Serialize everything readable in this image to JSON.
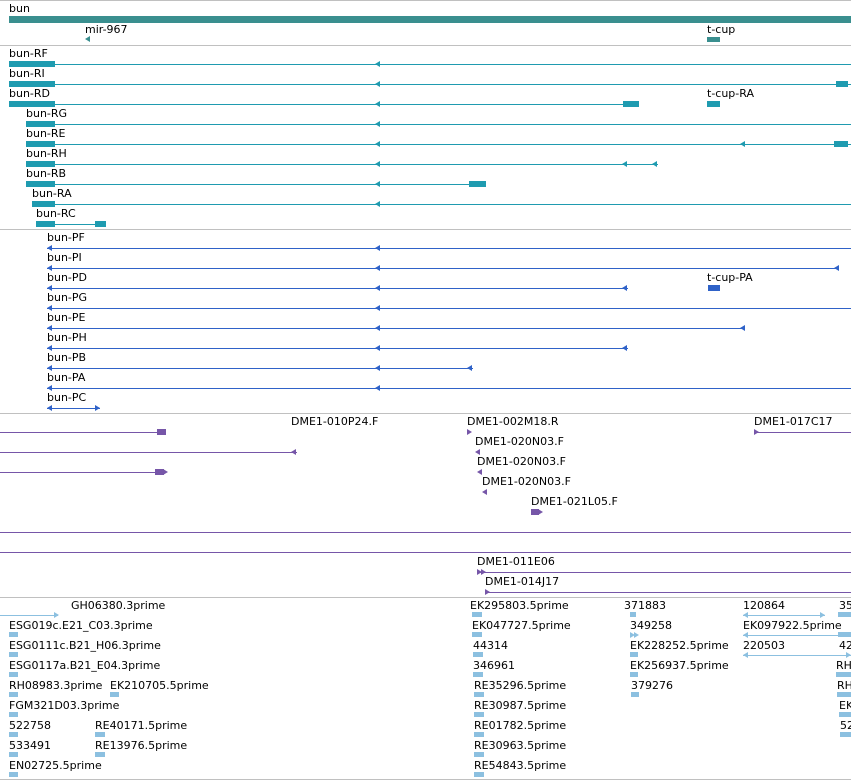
{
  "colors": {
    "gene": "#3a8f8f",
    "transcript": "#1f9bb0",
    "protein": "#2f62c8",
    "clone": "#7656a8",
    "est": "#8cc0e0",
    "separator": "#c0c0c0"
  },
  "gene_track": {
    "genes": [
      {
        "label": "bun"
      },
      {
        "label": "mir-967"
      },
      {
        "label": "t-cup"
      }
    ]
  },
  "transcripts": [
    {
      "label": "bun-RF"
    },
    {
      "label": "bun-RI"
    },
    {
      "label": "bun-RD"
    },
    {
      "label": "t-cup-RA"
    },
    {
      "label": "bun-RG"
    },
    {
      "label": "bun-RE"
    },
    {
      "label": "bun-RH"
    },
    {
      "label": "bun-RB"
    },
    {
      "label": "bun-RA"
    },
    {
      "label": "bun-RC"
    }
  ],
  "proteins": [
    {
      "label": "bun-PF"
    },
    {
      "label": "bun-PI"
    },
    {
      "label": "bun-PD"
    },
    {
      "label": "t-cup-PA"
    },
    {
      "label": "bun-PG"
    },
    {
      "label": "bun-PE"
    },
    {
      "label": "bun-PH"
    },
    {
      "label": "bun-PB"
    },
    {
      "label": "bun-PA"
    },
    {
      "label": "bun-PC"
    }
  ],
  "clones": [
    {
      "label": "DME1-010P24.F"
    },
    {
      "label": "DME1-002M18.R"
    },
    {
      "label": "DME1-017C17"
    },
    {
      "label": "DME1-020N03.F"
    },
    {
      "label": "DME1-020N03.F"
    },
    {
      "label": "DME1-020N03.F"
    },
    {
      "label": "DME1-021L05.F"
    },
    {
      "label": "DME1-011E06"
    },
    {
      "label": "DME1-014J17"
    }
  ],
  "ests": [
    {
      "label": "GH06380.3prime"
    },
    {
      "label": "EK295803.5prime"
    },
    {
      "label": "371883"
    },
    {
      "label": "120864"
    },
    {
      "label": "35"
    },
    {
      "label": "ESG019c.E21_C03.3prime"
    },
    {
      "label": "EK047727.5prime"
    },
    {
      "label": "349258"
    },
    {
      "label": "EK097922.5prime"
    },
    {
      "label": "ESG0111c.B21_H06.3prime"
    },
    {
      "label": "44314"
    },
    {
      "label": "EK228252.5prime"
    },
    {
      "label": "220503"
    },
    {
      "label": "42"
    },
    {
      "label": "ESG0117a.B21_E04.3prime"
    },
    {
      "label": "346961"
    },
    {
      "label": "EK256937.5prime"
    },
    {
      "label": "RH"
    },
    {
      "label": "RH08983.3prime"
    },
    {
      "label": "EK210705.5prime"
    },
    {
      "label": "RE35296.5prime"
    },
    {
      "label": "379276"
    },
    {
      "label": "RH"
    },
    {
      "label": "FGM321D03.3prime"
    },
    {
      "label": "RE30987.5prime"
    },
    {
      "label": "EK"
    },
    {
      "label": "522758"
    },
    {
      "label": "RE40171.5prime"
    },
    {
      "label": "RE01782.5prime"
    },
    {
      "label": "52"
    },
    {
      "label": "533491"
    },
    {
      "label": "RE13976.5prime"
    },
    {
      "label": "RE30963.5prime"
    },
    {
      "label": "EN02725.5prime"
    },
    {
      "label": "RE54843.5prime"
    }
  ]
}
